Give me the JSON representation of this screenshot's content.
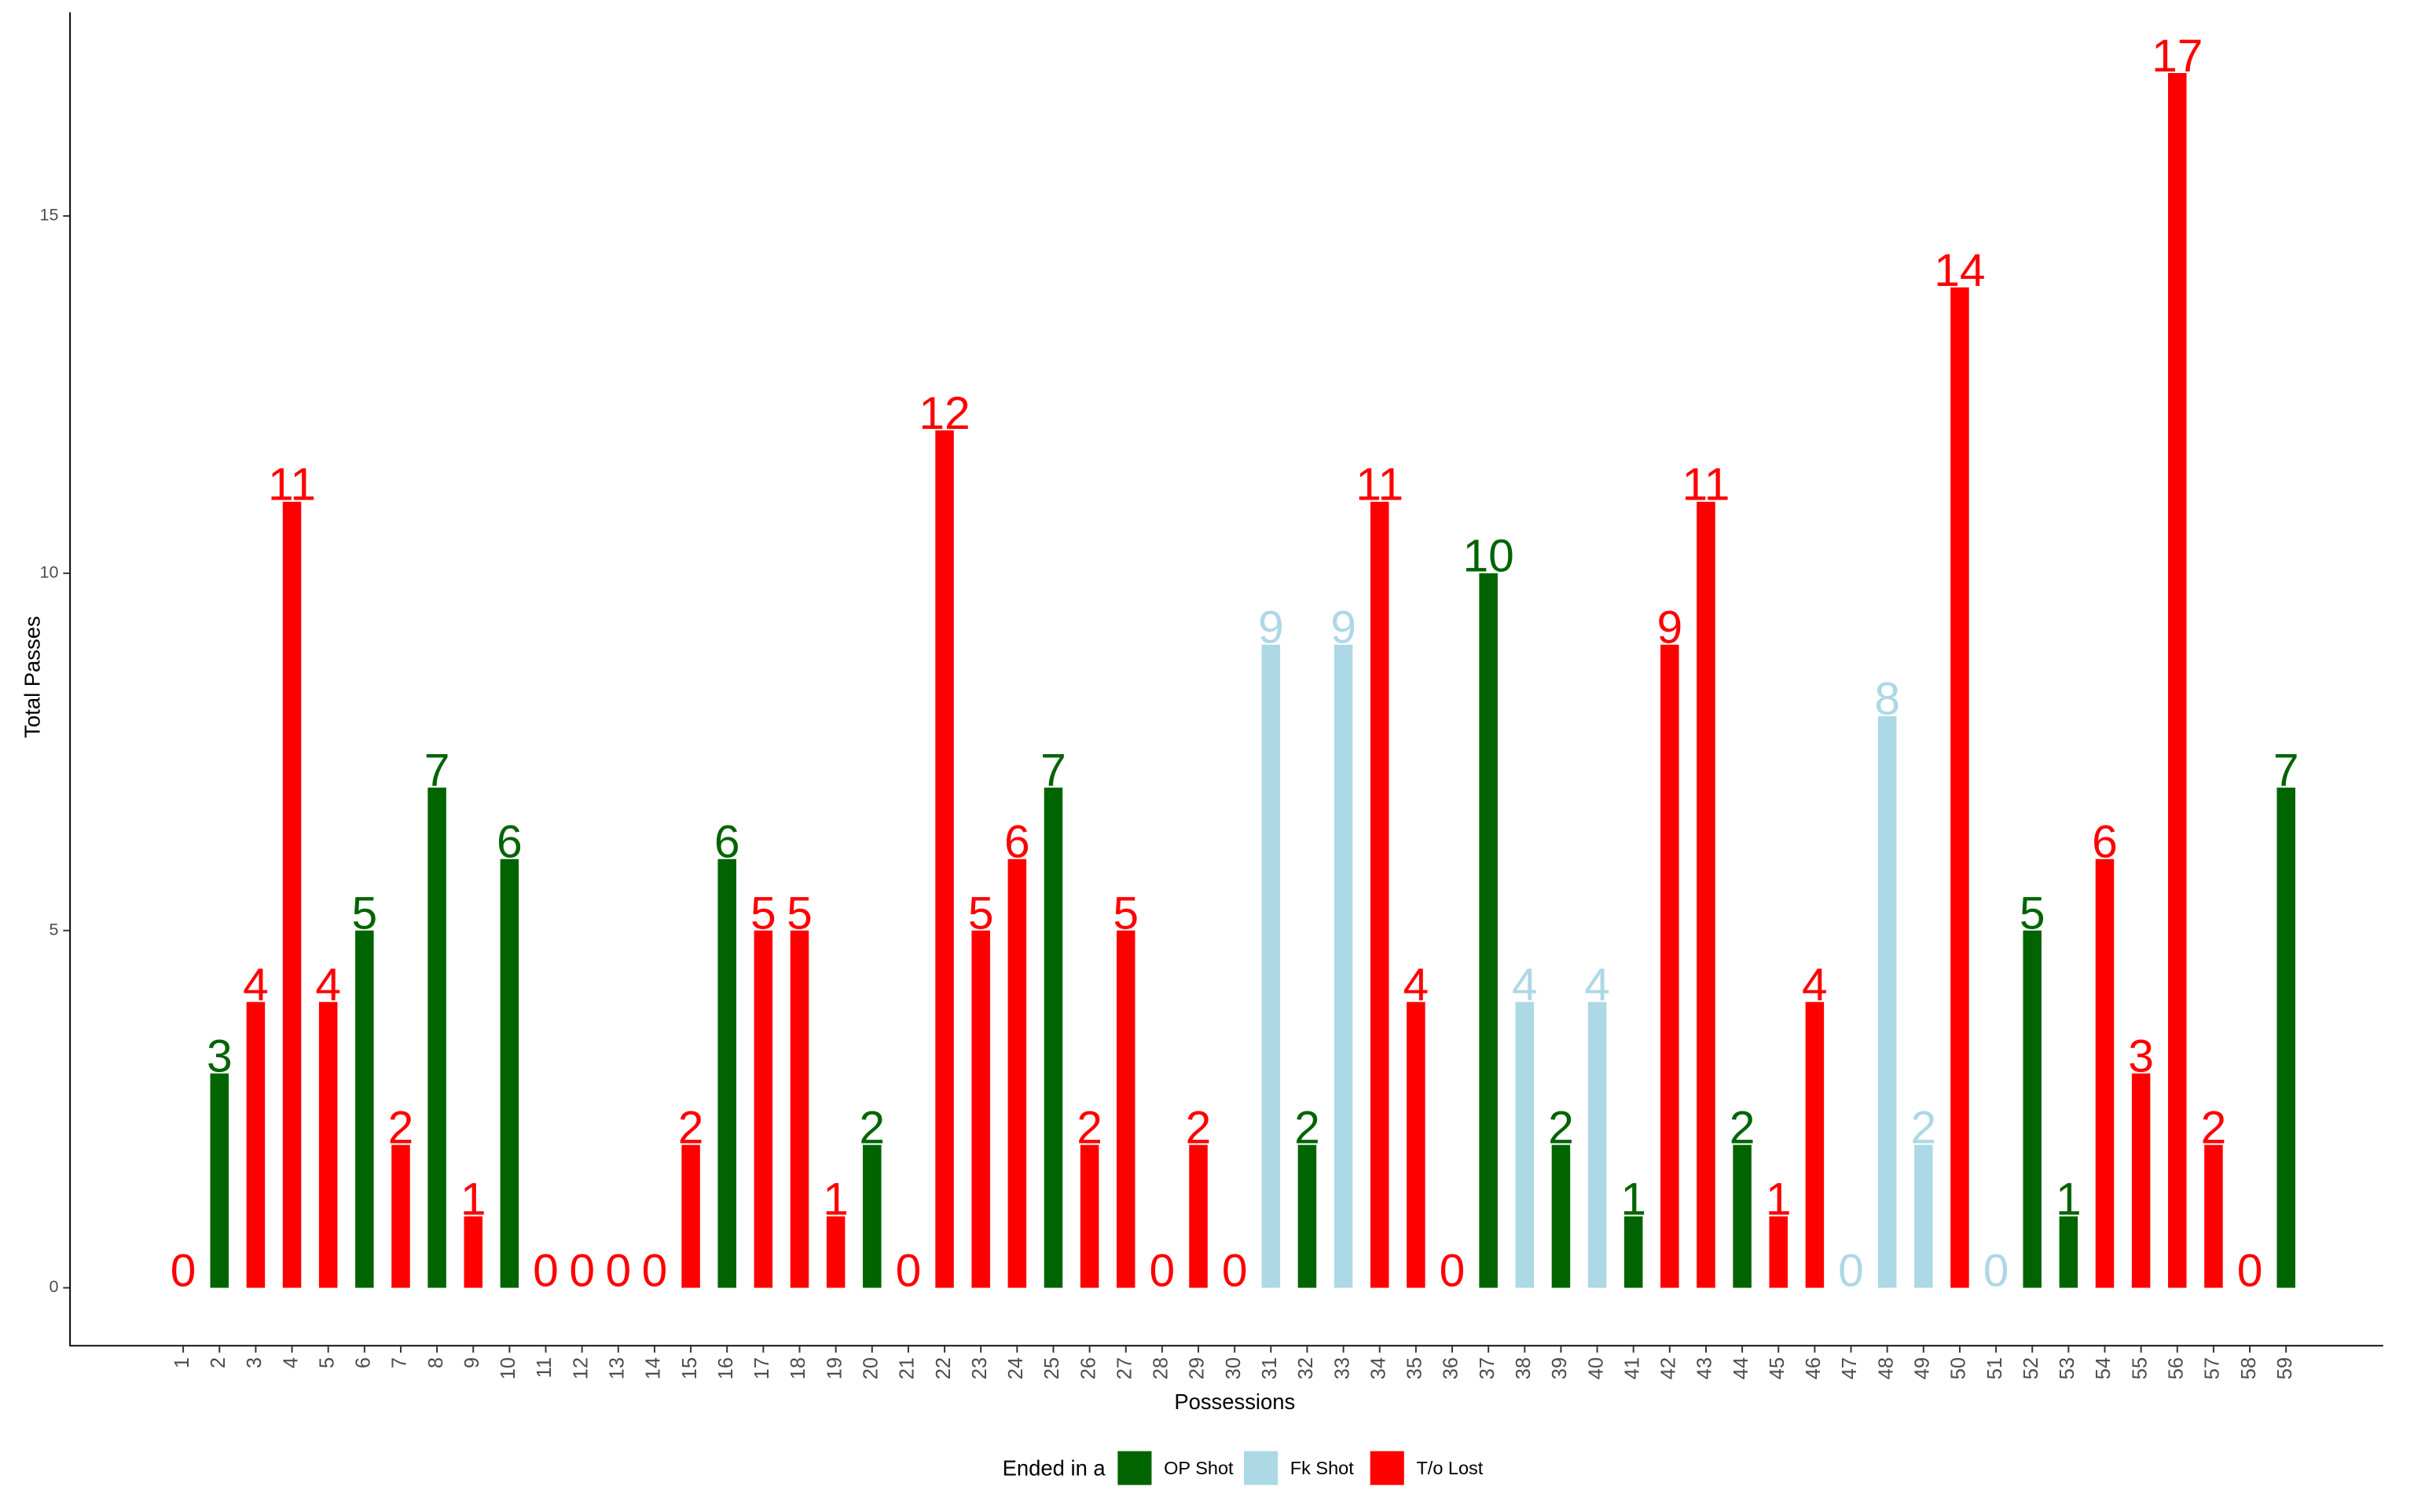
{
  "chart_data": {
    "type": "bar",
    "x_label": "Possessions",
    "y_label": "Total Passes",
    "categories": [
      "1",
      "2",
      "3",
      "4",
      "5",
      "6",
      "7",
      "8",
      "9",
      "10",
      "11",
      "12",
      "13",
      "14",
      "15",
      "16",
      "17",
      "18",
      "19",
      "20",
      "21",
      "22",
      "23",
      "24",
      "25",
      "26",
      "27",
      "28",
      "29",
      "30",
      "31",
      "32",
      "33",
      "34",
      "35",
      "36",
      "37",
      "38",
      "39",
      "40",
      "41",
      "42",
      "43",
      "44",
      "45",
      "46",
      "47",
      "48",
      "49",
      "50",
      "51",
      "52",
      "53",
      "54",
      "55",
      "56",
      "57",
      "58",
      "59"
    ],
    "legend_title": "Ended in a",
    "series": [
      {
        "name": "OP Shot",
        "color": "#006400",
        "values": [
          null,
          3,
          null,
          null,
          null,
          5,
          null,
          7,
          null,
          6,
          null,
          null,
          null,
          null,
          null,
          6,
          null,
          null,
          null,
          2,
          null,
          null,
          null,
          null,
          7,
          null,
          null,
          null,
          null,
          null,
          null,
          2,
          null,
          null,
          null,
          null,
          10,
          null,
          2,
          null,
          1,
          null,
          null,
          2,
          null,
          null,
          null,
          null,
          null,
          null,
          null,
          5,
          1,
          null,
          null,
          null,
          null,
          null,
          7
        ]
      },
      {
        "name": "Fk Shot",
        "color": "#add8e6",
        "values": [
          null,
          null,
          null,
          null,
          null,
          null,
          null,
          null,
          null,
          null,
          null,
          null,
          null,
          null,
          null,
          null,
          null,
          null,
          null,
          null,
          null,
          null,
          null,
          null,
          null,
          null,
          null,
          null,
          null,
          null,
          9,
          null,
          9,
          null,
          null,
          null,
          null,
          4,
          null,
          4,
          null,
          null,
          null,
          null,
          null,
          null,
          0,
          8,
          2,
          null,
          0,
          null,
          null,
          null,
          null,
          null,
          null,
          null,
          null
        ]
      },
      {
        "name": "T/o Lost",
        "color": "#ff0000",
        "values": [
          0,
          null,
          4,
          11,
          4,
          null,
          2,
          null,
          1,
          null,
          0,
          0,
          0,
          0,
          2,
          null,
          5,
          5,
          1,
          null,
          0,
          12,
          5,
          6,
          null,
          2,
          5,
          0,
          2,
          0,
          null,
          null,
          null,
          11,
          4,
          0,
          null,
          null,
          null,
          null,
          null,
          9,
          11,
          null,
          1,
          4,
          null,
          null,
          null,
          14,
          null,
          null,
          null,
          6,
          3,
          17,
          2,
          0,
          null
        ]
      }
    ],
    "ylim": [
      -0.8,
      17.85
    ],
    "yticks": [
      0,
      5,
      10,
      15
    ],
    "grid": false
  }
}
